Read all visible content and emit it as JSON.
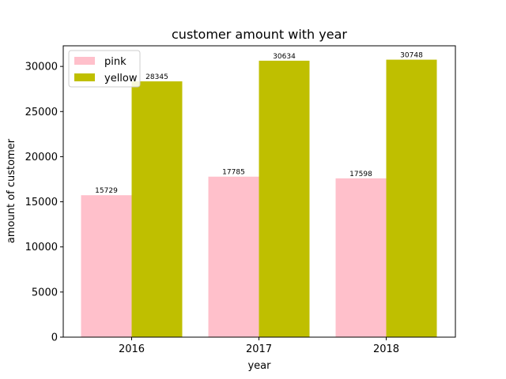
{
  "chart_data": {
    "type": "bar",
    "title": "customer amount with year",
    "xlabel": "year",
    "ylabel": "amount of customer",
    "categories": [
      "2016",
      "2017",
      "2018"
    ],
    "series": [
      {
        "name": "pink",
        "color": "#ffc0cb",
        "values": [
          15729,
          17785,
          17598
        ]
      },
      {
        "name": "yellow",
        "color": "#bfbf00",
        "values": [
          28345,
          30634,
          30748
        ]
      }
    ],
    "ylim": [
      0,
      32286
    ],
    "yticks": [
      0,
      5000,
      10000,
      15000,
      20000,
      25000,
      30000
    ],
    "legend": "top-left",
    "grid": false
  }
}
